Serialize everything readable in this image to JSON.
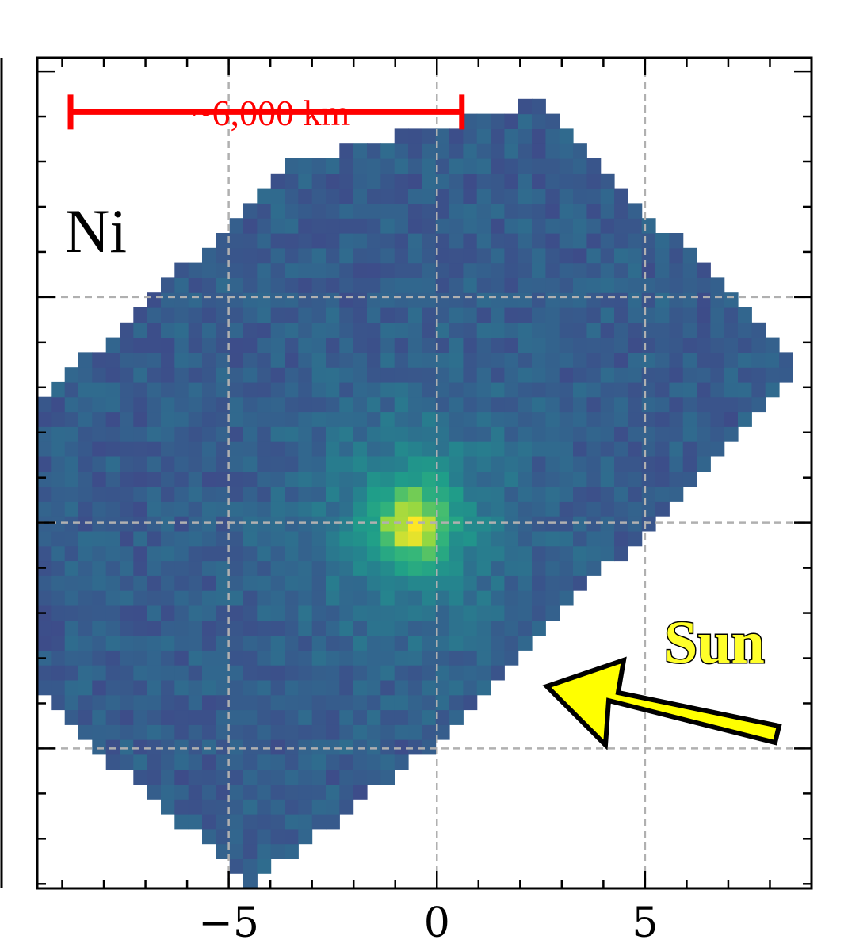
{
  "chart_data": {
    "type": "heatmap",
    "element": "Ni",
    "colormap": "viridis",
    "xaxis": {
      "ticks": [
        -5,
        0,
        5
      ],
      "tick_labels": [
        "−5",
        "0",
        "5"
      ],
      "xlim": [
        -9.6,
        9.0
      ]
    },
    "yaxis": {
      "ylim": [
        -8.1,
        10.3
      ],
      "gridlines": [
        -5,
        0,
        5
      ]
    },
    "grid": true,
    "footprint": {
      "corners": [
        [
          2.4,
          9.3
        ],
        [
          8.8,
          3.5
        ],
        [
          0.0,
          -4.9
        ],
        [
          -9.5,
          2.7
        ],
        [
          -3.4,
          8.0
        ],
        [
          -4.5,
          -8.0
        ]
      ],
      "shape": "rotated rectangular slit coverage"
    },
    "peak": {
      "x": -0.6,
      "y": 0.0,
      "relative_intensity": 1.0
    },
    "scale_bar": {
      "label": "~6,000 km",
      "x_from": -8.8,
      "x_to": 0.6,
      "y": 9.1
    },
    "annotations": [
      {
        "text": "Sun",
        "type": "direction_arrow",
        "direction": "upper-left"
      }
    ]
  },
  "labels": {
    "element": "Ni",
    "scale_bar": "~6,000 km",
    "sun": "Sun"
  },
  "colors": {
    "scale_bar": "#ff0000",
    "arrow_fill": "#ffff00",
    "grid": "#b0b0b0"
  }
}
